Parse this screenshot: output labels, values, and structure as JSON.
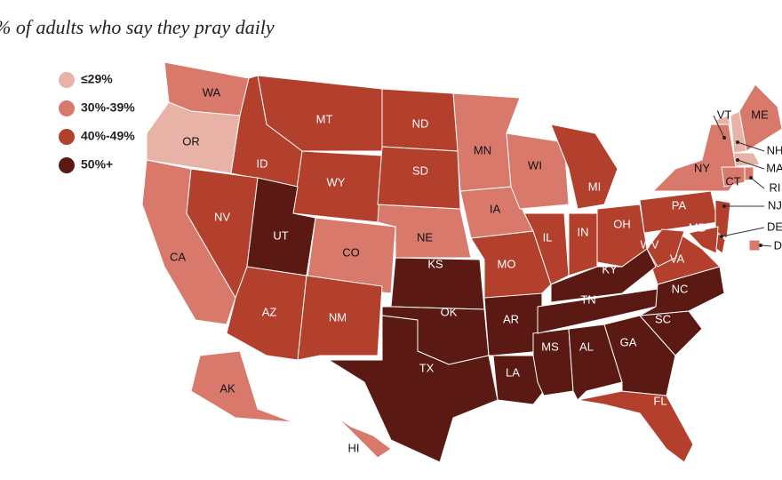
{
  "title": "% of adults who say they pray daily",
  "legend": {
    "items": [
      {
        "label": "≤29%",
        "color": "#e8b2a6",
        "states": [
          "OR",
          "VT",
          "NH",
          "MA"
        ]
      },
      {
        "label": "30%-39%",
        "color": "#d8796c",
        "states": [
          "WA",
          "CA",
          "CO",
          "NE",
          "IA",
          "MN",
          "WI",
          "NY",
          "ME",
          "CT",
          "RI",
          "AK",
          "HI",
          "DC"
        ]
      },
      {
        "label": "40%-49%",
        "color": "#b3402d",
        "states": [
          "MT",
          "ID",
          "WY",
          "ND",
          "SD",
          "NV",
          "AZ",
          "NM",
          "MO",
          "IL",
          "IN",
          "MI",
          "OH",
          "PA",
          "VA",
          "WV",
          "FL",
          "NJ",
          "MD",
          "DE"
        ]
      },
      {
        "label": "50%+",
        "color": "#5a1913",
        "states": [
          "UT",
          "KS",
          "OK",
          "TX",
          "AR",
          "LA",
          "MS",
          "AL",
          "GA",
          "TN",
          "KY",
          "SC",
          "NC"
        ]
      }
    ]
  }
}
